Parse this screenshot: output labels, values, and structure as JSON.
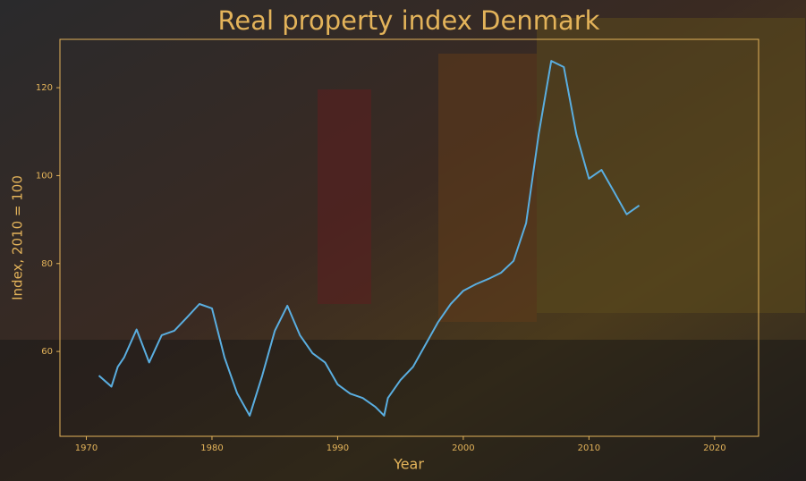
{
  "chart_data": {
    "type": "line",
    "title": "Real property index Denmark",
    "x_label": "Year",
    "y_label": "Index, 2010 = 100",
    "x": [
      1971,
      1972,
      1972.5,
      1973,
      1974,
      1975,
      1976,
      1977,
      1978,
      1979,
      1980,
      1981,
      1982,
      1983,
      1984,
      1985,
      1986,
      1987,
      1988,
      1989,
      1990,
      1991,
      1992,
      1993,
      1993.7,
      1994,
      1995,
      1996,
      1997,
      1998,
      1999,
      2000,
      2001,
      2002,
      2003,
      2004,
      2005,
      2006,
      2007,
      2008,
      2009,
      2010,
      2011,
      2012,
      2013,
      2014
    ],
    "series": [
      {
        "color": "#5aaee0",
        "values": [
          54.5,
          52,
          56.5,
          58.6,
          65,
          57.5,
          63.7,
          64.7,
          67.7,
          70.8,
          69.8,
          58.6,
          50.5,
          45.4,
          54.5,
          64.7,
          70.4,
          63.7,
          59.6,
          57.5,
          52.5,
          50.4,
          49.4,
          47.4,
          45.4,
          49.4,
          53.5,
          56.5,
          61.6,
          66.7,
          70.8,
          73.8,
          75.3,
          76.5,
          77.9,
          80.6,
          89.2,
          109.4,
          126.1,
          124.7,
          109.4,
          99.3,
          101.3,
          96.3,
          91.2,
          93.2
        ]
      }
    ],
    "xlim": [
      1967.9,
      2023.5
    ],
    "ylim": [
      40.7,
      131
    ],
    "xticks": [
      1970,
      1980,
      1990,
      2000,
      2010,
      2020
    ],
    "yticks": [
      60,
      80,
      100,
      120
    ],
    "grid": false
  }
}
